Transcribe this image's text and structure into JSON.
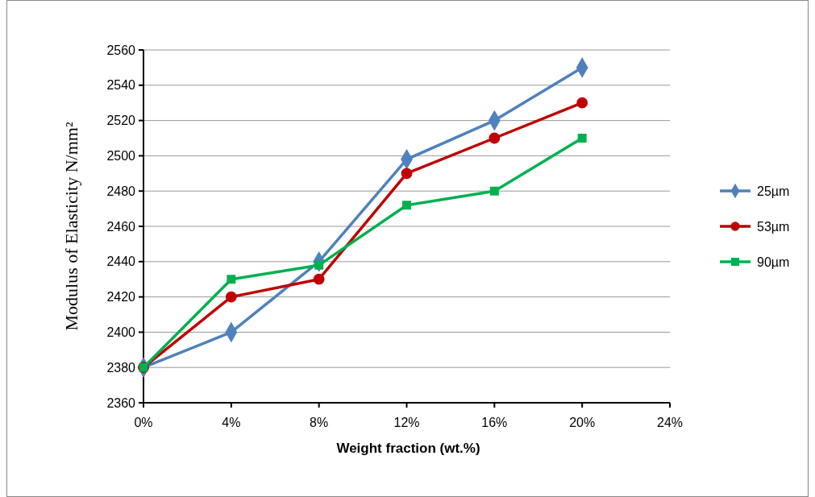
{
  "chart_data": {
    "type": "line",
    "xlabel": "Weight fraction (wt.%)",
    "ylabel": "Modulus of Elasticity N/mm²",
    "x": [
      0,
      4,
      8,
      12,
      16,
      20
    ],
    "xlim": [
      0,
      24
    ],
    "xticks": [
      {
        "value": 0,
        "label": "0%"
      },
      {
        "value": 4,
        "label": "4%"
      },
      {
        "value": 8,
        "label": "8%"
      },
      {
        "value": 12,
        "label": "12%"
      },
      {
        "value": 16,
        "label": "16%"
      },
      {
        "value": 20,
        "label": "20%"
      },
      {
        "value": 24,
        "label": "24%"
      }
    ],
    "ylim": [
      2360,
      2560
    ],
    "yticks": [
      2360,
      2380,
      2400,
      2420,
      2440,
      2460,
      2480,
      2500,
      2520,
      2540,
      2560
    ],
    "grid": "y",
    "legend": "right",
    "line_style": "solid",
    "series": [
      {
        "name": "25µm",
        "color": "#4f81bd",
        "marker": "diamond",
        "values": [
          2380,
          2400,
          2440,
          2498,
          2520,
          2550
        ]
      },
      {
        "name": "53µm",
        "color": "#c00000",
        "marker": "circle",
        "values": [
          2380,
          2420,
          2430,
          2490,
          2510,
          2530
        ]
      },
      {
        "name": "90µm",
        "color": "#00b050",
        "marker": "square",
        "values": [
          2380,
          2430,
          2438,
          2472,
          2480,
          2510
        ]
      }
    ]
  }
}
